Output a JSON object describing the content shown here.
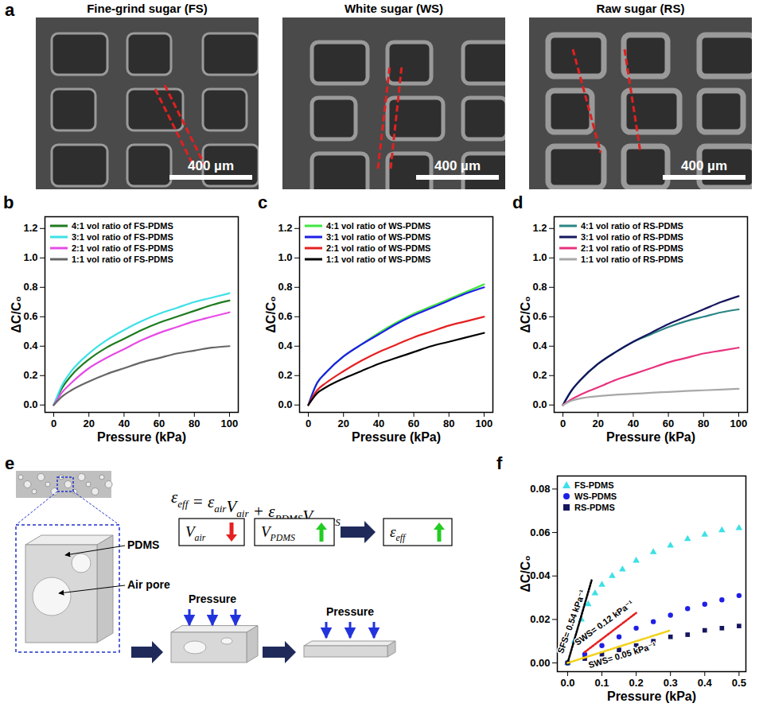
{
  "images": {
    "panel_label": "a",
    "items": [
      {
        "title": "Fine-grind sugar (FS)",
        "scale_bar": "400 µm"
      },
      {
        "title": "White sugar (WS)",
        "scale_bar": "400 µm"
      },
      {
        "title": "Raw sugar (RS)",
        "scale_bar": "400 µm"
      }
    ]
  },
  "chart_data": [
    {
      "panel_label": "b",
      "type": "line",
      "x_label": "Pressure (kPa)",
      "y_label": "ΔC/C₀",
      "x": [
        0,
        5,
        10,
        20,
        30,
        40,
        50,
        60,
        70,
        80,
        90,
        100
      ],
      "series": [
        {
          "name": "4:1 vol ratio of FS-PDMS",
          "color": "#1e7b1e",
          "values": [
            0,
            0.12,
            0.2,
            0.31,
            0.39,
            0.45,
            0.51,
            0.56,
            0.6,
            0.64,
            0.68,
            0.71
          ]
        },
        {
          "name": "3:1 vol ratio of FS-PDMS",
          "color": "#3de0e6",
          "values": [
            0,
            0.14,
            0.23,
            0.35,
            0.44,
            0.51,
            0.57,
            0.62,
            0.66,
            0.7,
            0.73,
            0.76
          ]
        },
        {
          "name": "2:1 vol ratio of FS-PDMS",
          "color": "#e64ce6",
          "values": [
            0,
            0.09,
            0.15,
            0.25,
            0.32,
            0.38,
            0.44,
            0.49,
            0.53,
            0.57,
            0.6,
            0.63
          ]
        },
        {
          "name": "1:1 vol ratio of FS-PDMS",
          "color": "#666666",
          "values": [
            0,
            0.06,
            0.1,
            0.16,
            0.21,
            0.25,
            0.29,
            0.32,
            0.35,
            0.37,
            0.39,
            0.4
          ]
        }
      ],
      "xlim": [
        -5,
        105
      ],
      "xticks": [
        0,
        20,
        40,
        60,
        80,
        100
      ],
      "ylim": [
        -0.05,
        1.28
      ],
      "yticks": [
        {
          "value": 0,
          "label": "0.0"
        },
        {
          "value": 0.2,
          "label": "0.2"
        },
        {
          "value": 0.4,
          "label": "0.4"
        },
        {
          "value": 0.6,
          "label": "0.6"
        },
        {
          "value": 0.8,
          "label": "0.8"
        },
        {
          "value": 1,
          "label": "1.0"
        },
        {
          "value": 1.2,
          "label": "1.2"
        }
      ],
      "legend": "top-left",
      "grid": false
    },
    {
      "panel_label": "c",
      "type": "line",
      "x_label": "Pressure (kPa)",
      "y_label": "ΔC/C₀",
      "x": [
        0,
        5,
        10,
        20,
        30,
        40,
        50,
        60,
        70,
        80,
        90,
        100
      ],
      "series": [
        {
          "name": "4:1 vol ratio of WS-PDMS",
          "color": "#3ee63e",
          "values": [
            0,
            0.15,
            0.22,
            0.33,
            0.41,
            0.49,
            0.56,
            0.62,
            0.67,
            0.72,
            0.77,
            0.82
          ]
        },
        {
          "name": "3:1 vol ratio of WS-PDMS",
          "color": "#1f1fe6",
          "values": [
            0,
            0.15,
            0.22,
            0.33,
            0.41,
            0.48,
            0.55,
            0.61,
            0.66,
            0.71,
            0.76,
            0.8
          ]
        },
        {
          "name": "2:1 vol ratio of WS-PDMS",
          "color": "#e62020",
          "values": [
            0,
            0.1,
            0.15,
            0.23,
            0.3,
            0.36,
            0.41,
            0.46,
            0.5,
            0.54,
            0.57,
            0.6
          ]
        },
        {
          "name": "1:1 vol ratio of WS-PDMS",
          "color": "#000000",
          "values": [
            0,
            0.08,
            0.12,
            0.18,
            0.23,
            0.28,
            0.32,
            0.36,
            0.4,
            0.43,
            0.46,
            0.49
          ]
        }
      ],
      "xlim": [
        -5,
        105
      ],
      "xticks": [
        0,
        20,
        40,
        60,
        80,
        100
      ],
      "ylim": [
        -0.05,
        1.28
      ],
      "yticks": [
        {
          "value": 0,
          "label": "0.0"
        },
        {
          "value": 0.2,
          "label": "0.2"
        },
        {
          "value": 0.4,
          "label": "0.4"
        },
        {
          "value": 0.6,
          "label": "0.6"
        },
        {
          "value": 0.8,
          "label": "0.8"
        },
        {
          "value": 1,
          "label": "1.0"
        },
        {
          "value": 1.2,
          "label": "1.2"
        }
      ],
      "legend": "top-left",
      "grid": false
    },
    {
      "panel_label": "d",
      "type": "line",
      "x_label": "Pressure (kPa)",
      "y_label": "ΔC/C₀",
      "x": [
        0,
        5,
        10,
        20,
        30,
        40,
        50,
        60,
        70,
        80,
        90,
        100
      ],
      "series": [
        {
          "name": "4:1 vol ratio of RS-PDMS",
          "color": "#2a8585",
          "values": [
            0,
            0.1,
            0.17,
            0.28,
            0.36,
            0.43,
            0.48,
            0.53,
            0.57,
            0.6,
            0.63,
            0.65
          ]
        },
        {
          "name": "3:1 vol ratio of RS-PDMS",
          "color": "#16165e",
          "values": [
            0,
            0.1,
            0.17,
            0.28,
            0.36,
            0.43,
            0.49,
            0.55,
            0.6,
            0.65,
            0.7,
            0.74
          ]
        },
        {
          "name": "2:1 vol ratio of RS-PDMS",
          "color": "#e8327d",
          "values": [
            0,
            0.04,
            0.07,
            0.12,
            0.17,
            0.21,
            0.25,
            0.29,
            0.32,
            0.35,
            0.37,
            0.39
          ]
        },
        {
          "name": "1:1 vol ratio of RS-PDMS",
          "color": "#a8a8a8",
          "values": [
            0,
            0.03,
            0.045,
            0.06,
            0.07,
            0.076,
            0.083,
            0.089,
            0.095,
            0.1,
            0.105,
            0.11
          ]
        }
      ],
      "xlim": [
        -5,
        105
      ],
      "xticks": [
        0,
        20,
        40,
        60,
        80,
        100
      ],
      "ylim": [
        -0.05,
        1.28
      ],
      "yticks": [
        {
          "value": 0,
          "label": "0.0"
        },
        {
          "value": 0.2,
          "label": "0.2"
        },
        {
          "value": 0.4,
          "label": "0.4"
        },
        {
          "value": 0.6,
          "label": "0.6"
        },
        {
          "value": 0.8,
          "label": "0.8"
        },
        {
          "value": 1,
          "label": "1.0"
        },
        {
          "value": 1.2,
          "label": "1.2"
        }
      ],
      "legend": "top-left",
      "grid": false
    },
    {
      "panel_label": "f",
      "type": "scatter",
      "x_label": "Pressure (kPa)",
      "y_label": "ΔC/C₀",
      "series": [
        {
          "name": "FS-PDMS",
          "color": "#3de0e6",
          "marker": "triangle",
          "x": [
            0,
            0.02,
            0.04,
            0.06,
            0.08,
            0.1,
            0.13,
            0.16,
            0.2,
            0.25,
            0.3,
            0.35,
            0.4,
            0.45,
            0.5
          ],
          "values": [
            0,
            0.01,
            0.02,
            0.027,
            0.032,
            0.036,
            0.04,
            0.043,
            0.047,
            0.051,
            0.054,
            0.057,
            0.059,
            0.061,
            0.062
          ]
        },
        {
          "name": "WS-PDMS",
          "color": "#1f1fe6",
          "marker": "circle",
          "x": [
            0,
            0.05,
            0.1,
            0.15,
            0.2,
            0.25,
            0.3,
            0.35,
            0.4,
            0.45,
            0.5
          ],
          "values": [
            0,
            0.004,
            0.008,
            0.012,
            0.016,
            0.019,
            0.022,
            0.025,
            0.027,
            0.029,
            0.031
          ]
        },
        {
          "name": "RS-PDMS",
          "color": "#16165e",
          "marker": "square",
          "x": [
            0,
            0.05,
            0.1,
            0.15,
            0.2,
            0.25,
            0.3,
            0.35,
            0.4,
            0.45,
            0.5
          ],
          "values": [
            0,
            0.002,
            0.004,
            0.006,
            0.008,
            0.01,
            0.012,
            0.013,
            0.015,
            0.016,
            0.017
          ]
        }
      ],
      "fits": [
        {
          "label": "SFS= 0.54 kPa⁻¹",
          "color": "#000000",
          "line_style": "dotted",
          "x": [
            0,
            0.07
          ],
          "values": [
            0,
            0.038
          ]
        },
        {
          "label": "SWS= 0.12 kPa⁻¹",
          "color": "#e62020",
          "line_style": "dotted",
          "x": [
            0.05,
            0.2
          ],
          "values": [
            0.005,
            0.023
          ]
        },
        {
          "label": "SWS= 0.05 kPa⁻¹",
          "color": "#f2d21b",
          "line_style": "dotted",
          "x": [
            0,
            0.3
          ],
          "values": [
            0,
            0.015
          ]
        }
      ],
      "xlim": [
        -0.03,
        0.52
      ],
      "xticks": [
        {
          "value": 0,
          "label": "0.0"
        },
        {
          "value": 0.1,
          "label": "0.1"
        },
        {
          "value": 0.2,
          "label": "0.2"
        },
        {
          "value": 0.3,
          "label": "0.3"
        },
        {
          "value": 0.4,
          "label": "0.4"
        },
        {
          "value": 0.5,
          "label": "0.5"
        }
      ],
      "ylim": [
        -0.004,
        0.086
      ],
      "yticks": [
        {
          "value": 0,
          "label": "0.00"
        },
        {
          "value": 0.02,
          "label": "0.02"
        },
        {
          "value": 0.04,
          "label": "0.04"
        },
        {
          "value": 0.06,
          "label": "0.06"
        },
        {
          "value": 0.08,
          "label": "0.08"
        }
      ],
      "legend": "top-left",
      "grid": false
    }
  ],
  "diagram": {
    "panel_label": "e",
    "equation": [
      [
        "ε",
        "eff"
      ],
      [
        "="
      ],
      [
        "ε",
        "air"
      ],
      [
        "V",
        "air"
      ],
      [
        "+"
      ],
      [
        "ε",
        "PDMS"
      ],
      [
        "V",
        "PDMS"
      ]
    ],
    "boxes": [
      {
        "term": [
          "V",
          "air"
        ],
        "arrow": "down",
        "color": "#e62020"
      },
      {
        "term": [
          "V",
          "PDMS"
        ],
        "arrow": "up",
        "color": "#22cc22"
      },
      {
        "term": [
          "ε",
          "eff"
        ],
        "arrow": "up",
        "color": "#22cc22"
      }
    ],
    "labels": {
      "pdms": "PDMS",
      "pore": "Air pore",
      "pressure": [
        "Pressure",
        "Pressure"
      ]
    }
  }
}
